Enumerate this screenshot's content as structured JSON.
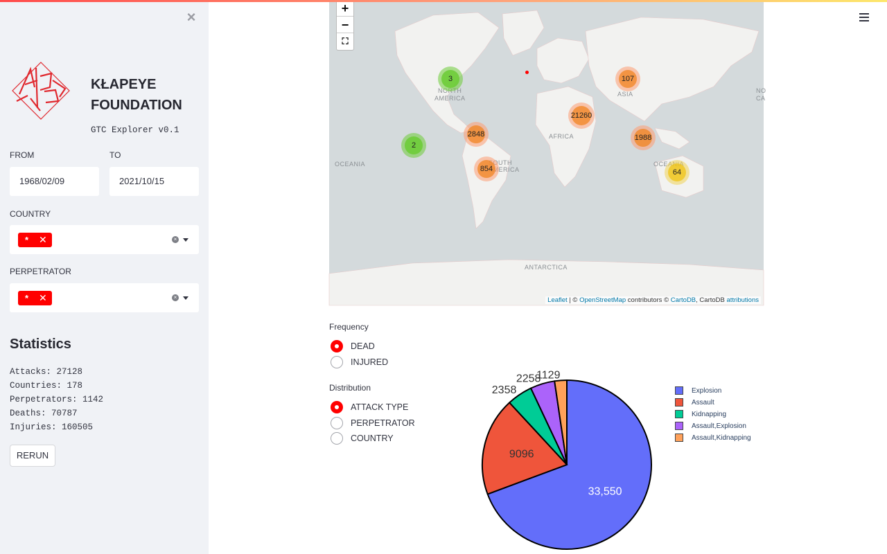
{
  "sidebar": {
    "brand_line1": "KŁAPEYE",
    "brand_line2": "FOUNDATION",
    "version": "GTC Explorer v0.1",
    "from_label": "FROM",
    "to_label": "TO",
    "from_value": "1968/02/09",
    "to_value": "2021/10/15",
    "country_label": "COUNTRY",
    "country_tag": "*",
    "perpetrator_label": "PERPETRATOR",
    "perpetrator_tag": "*",
    "stats_title": "Statistics",
    "stats": [
      "Attacks: 27128",
      "Countries: 178",
      "Perpetrators: 1142",
      "Deaths: 70787",
      "Injuries: 160505"
    ],
    "rerun_label": "RERUN"
  },
  "map": {
    "zoom_in": "+",
    "zoom_out": "−",
    "fullscreen": "⛶",
    "labels": [
      "NORTH",
      "AMERICA",
      "ASIA",
      "AFRICA",
      "OCEANIA",
      "OCEANIA",
      "NO",
      "CA",
      "SOUTH",
      "AMERICA",
      "ANTARCTICA"
    ],
    "clusters": [
      {
        "count": "3",
        "color": "green"
      },
      {
        "count": "107",
        "color": "orange"
      },
      {
        "count": "21260",
        "color": "orange"
      },
      {
        "count": "2848",
        "color": "orange"
      },
      {
        "count": "2",
        "color": "green"
      },
      {
        "count": "854",
        "color": "orange"
      },
      {
        "count": "1988",
        "color": "orange"
      },
      {
        "count": "64",
        "color": "yellow"
      }
    ],
    "attribution": {
      "leaflet": "Leaflet",
      "sep": " | © ",
      "osm": "OpenStreetMap",
      "mid": " contributors © ",
      "carto": "CartoDB",
      "mid2": ", CartoDB ",
      "attributions": "attributions"
    }
  },
  "frequency": {
    "label": "Frequency",
    "options": [
      "DEAD",
      "INJURED"
    ],
    "selected": "DEAD"
  },
  "distribution": {
    "label": "Distribution",
    "options": [
      "ATTACK TYPE",
      "PERPETRATOR",
      "COUNTRY"
    ],
    "selected": "ATTACK TYPE"
  },
  "chart_data": {
    "type": "pie",
    "categories": [
      "Explosion",
      "Assault",
      "Kidnapping",
      "Assault,Explosion",
      "Assault,Kidnapping"
    ],
    "values": [
      33550,
      9096,
      2358,
      2258,
      1129
    ],
    "value_labels": [
      "33,550",
      "9096",
      "2358",
      "2258",
      "1129"
    ],
    "colors": [
      "#636efa",
      "#ef553b",
      "#00cc96",
      "#ab63fa",
      "#ffa15a"
    ],
    "legend_placement": "right"
  }
}
